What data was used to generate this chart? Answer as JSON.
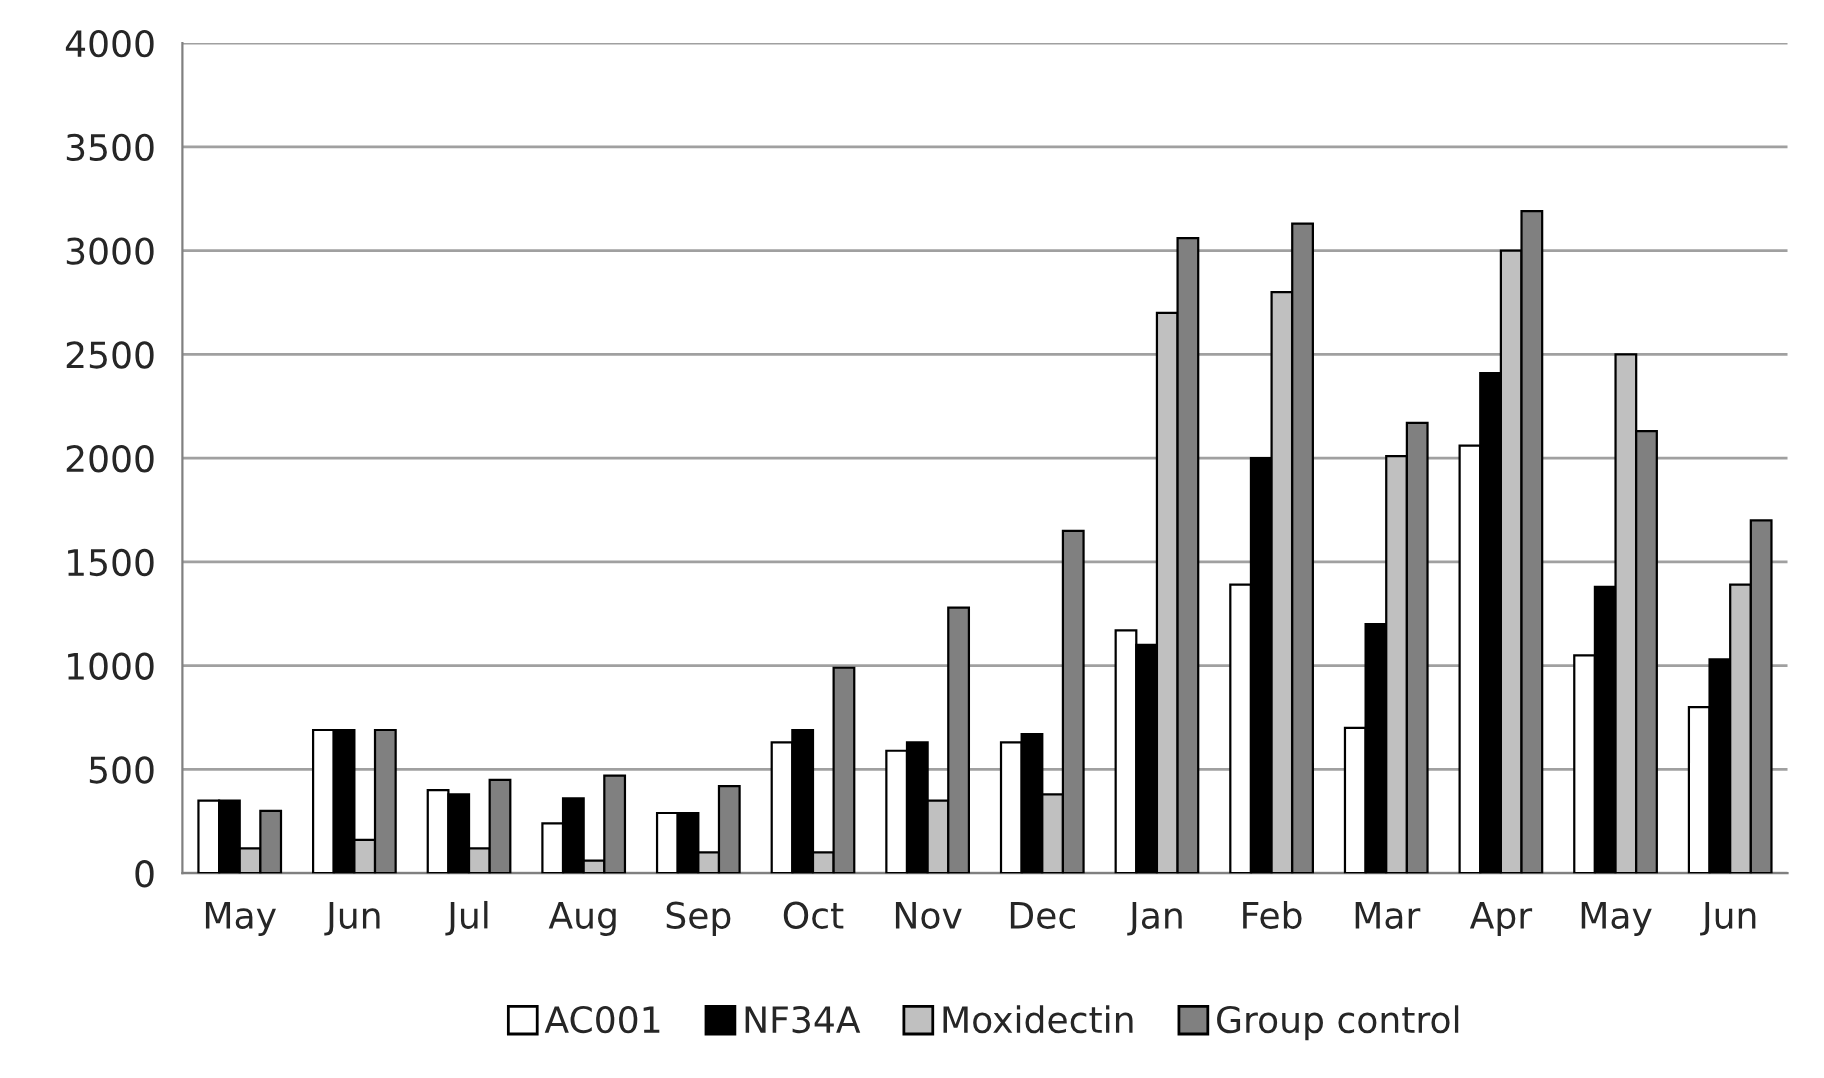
{
  "chart_data": {
    "type": "bar",
    "categories": [
      "May",
      "Jun",
      "Jul",
      "Aug",
      "Sep",
      "Oct",
      "Nov",
      "Dec",
      "Jan",
      "Feb",
      "Mar",
      "Apr",
      "May",
      "Jun"
    ],
    "series": [
      {
        "name": "AC001",
        "color": "#ffffff",
        "values": [
          350,
          690,
          400,
          240,
          290,
          630,
          590,
          630,
          1170,
          1390,
          700,
          2060,
          1050,
          800
        ]
      },
      {
        "name": "NF34A",
        "color": "#000000",
        "values": [
          350,
          690,
          380,
          360,
          290,
          690,
          630,
          670,
          1100,
          2000,
          1200,
          2410,
          1380,
          1030
        ]
      },
      {
        "name": "Moxidectin",
        "color": "#c0c0c0",
        "values": [
          120,
          160,
          120,
          60,
          100,
          100,
          350,
          380,
          2700,
          2800,
          2010,
          3000,
          2500,
          1390
        ]
      },
      {
        "name": "Group control",
        "color": "#808080",
        "values": [
          300,
          690,
          450,
          470,
          420,
          990,
          1280,
          1650,
          3060,
          3130,
          2170,
          3190,
          2130,
          1700
        ]
      }
    ],
    "ylim": [
      0,
      4000
    ],
    "yticks": [
      0,
      500,
      1000,
      1500,
      2000,
      2500,
      3000,
      3500,
      4000
    ],
    "grid": "y",
    "legend": "bottom"
  }
}
